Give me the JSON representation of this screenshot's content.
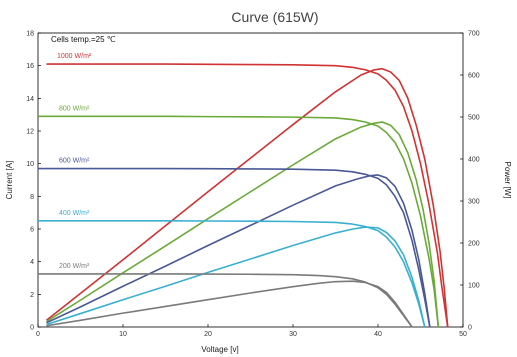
{
  "chart_data": {
    "type": "line",
    "title": "Curve (615W)",
    "xlabel": "Voltage [v]",
    "ylabel_left": "Current [A]",
    "ylabel_right": "Power [W]",
    "annotation": "Cells temp.=25 ℃",
    "xlim": [
      0,
      50
    ],
    "ylim_left": [
      0,
      18
    ],
    "ylim_right": [
      0,
      700
    ],
    "xticks": [
      0,
      10,
      20,
      30,
      40,
      50
    ],
    "yticks_left": [
      0,
      2,
      4,
      6,
      8,
      10,
      12,
      14,
      16,
      18
    ],
    "yticks_right": [
      0,
      100,
      200,
      300,
      400,
      500,
      600,
      700
    ],
    "grid": false,
    "series": [
      {
        "name": "1000 W/m²",
        "color": "#d13232",
        "current": {
          "x": [
            1,
            5,
            10,
            15,
            20,
            25,
            30,
            35,
            37,
            38.5,
            40,
            41,
            42,
            43,
            44,
            45,
            46,
            47,
            47.5,
            48.2
          ],
          "y": [
            16.1,
            16.1,
            16.1,
            16.1,
            16.08,
            16.07,
            16.05,
            16.0,
            15.9,
            15.75,
            15.5,
            15.1,
            14.5,
            13.5,
            12,
            10,
            7.5,
            4.5,
            2.5,
            0
          ]
        },
        "power": {
          "x": [
            1,
            5,
            10,
            15,
            20,
            25,
            30,
            35,
            38,
            39.5,
            40.5,
            41.5,
            42.5,
            43.5,
            44.5,
            45.5,
            46.5,
            47.3,
            47.8,
            48.2
          ],
          "y": [
            16,
            80,
            160,
            241,
            322,
            402,
            482,
            560,
            600,
            612,
            615,
            607,
            587,
            545,
            480,
            400,
            290,
            180,
            90,
            0
          ]
        }
      },
      {
        "name": "800 W/m²",
        "color": "#6aaa38",
        "current": {
          "x": [
            0,
            5,
            10,
            15,
            20,
            25,
            30,
            35,
            37,
            38.5,
            40,
            41,
            42,
            43,
            44,
            45,
            46,
            46.6,
            47.1
          ],
          "y": [
            12.9,
            12.9,
            12.9,
            12.9,
            12.88,
            12.87,
            12.85,
            12.8,
            12.7,
            12.55,
            12.3,
            11.9,
            11.3,
            10.3,
            8.8,
            6.8,
            4.2,
            2.3,
            0
          ]
        },
        "power": {
          "x": [
            1,
            5,
            10,
            15,
            20,
            25,
            30,
            35,
            38,
            39.5,
            40.5,
            41.5,
            42.5,
            43.5,
            44.5,
            45.3,
            46,
            46.6,
            47.1
          ],
          "y": [
            13,
            64,
            129,
            193,
            258,
            322,
            386,
            448,
            476,
            485,
            488,
            480,
            458,
            415,
            350,
            280,
            200,
            110,
            0
          ]
        }
      },
      {
        "name": "600 W/m²",
        "color": "#4a5896",
        "current": {
          "x": [
            0,
            5,
            10,
            15,
            20,
            25,
            30,
            35,
            37,
            38.5,
            40,
            41,
            42,
            43,
            44,
            44.8,
            45.5,
            46.1
          ],
          "y": [
            9.7,
            9.7,
            9.7,
            9.7,
            9.69,
            9.68,
            9.66,
            9.6,
            9.5,
            9.35,
            9.1,
            8.7,
            8.0,
            7.0,
            5.3,
            3.5,
            1.7,
            0
          ]
        },
        "power": {
          "x": [
            1,
            5,
            10,
            15,
            20,
            25,
            30,
            35,
            37.5,
            39,
            40,
            41,
            42,
            43,
            44,
            44.8,
            45.5,
            46.1
          ],
          "y": [
            10,
            48,
            97,
            145,
            194,
            242,
            290,
            336,
            352,
            360,
            362,
            355,
            335,
            295,
            230,
            160,
            80,
            0
          ]
        }
      },
      {
        "name": "400 W/m²",
        "color": "#3ab0d0",
        "current": {
          "x": [
            0,
            5,
            10,
            15,
            20,
            25,
            30,
            35,
            37,
            38.5,
            40,
            41,
            42,
            43,
            44,
            44.8,
            45.5
          ],
          "y": [
            6.5,
            6.5,
            6.5,
            6.5,
            6.49,
            6.48,
            6.46,
            6.4,
            6.3,
            6.15,
            5.9,
            5.5,
            4.9,
            4.0,
            2.7,
            1.4,
            0
          ]
        },
        "power": {
          "x": [
            1,
            5,
            10,
            15,
            20,
            25,
            30,
            35,
            37,
            38.5,
            40,
            41,
            42,
            43,
            44,
            44.8,
            45.5
          ],
          "y": [
            6,
            32,
            65,
            97,
            130,
            162,
            194,
            224,
            233,
            238,
            236,
            225,
            205,
            172,
            118,
            62,
            0
          ]
        }
      },
      {
        "name": "200 W/m²",
        "color": "#7a7a7a",
        "current": {
          "x": [
            0,
            5,
            10,
            15,
            20,
            25,
            30,
            33,
            35,
            37,
            38.5,
            40,
            41,
            42,
            43,
            44
          ],
          "y": [
            3.25,
            3.25,
            3.25,
            3.25,
            3.24,
            3.23,
            3.2,
            3.15,
            3.08,
            2.95,
            2.75,
            2.4,
            2.0,
            1.4,
            0.7,
            0
          ]
        },
        "power": {
          "x": [
            1,
            5,
            10,
            15,
            20,
            25,
            30,
            33,
            35,
            37,
            38.5,
            40,
            41,
            42,
            43,
            44
          ],
          "y": [
            3,
            16,
            33,
            49,
            65,
            81,
            96,
            104,
            108,
            109,
            106,
            96,
            82,
            59,
            30,
            0
          ]
        }
      }
    ]
  }
}
